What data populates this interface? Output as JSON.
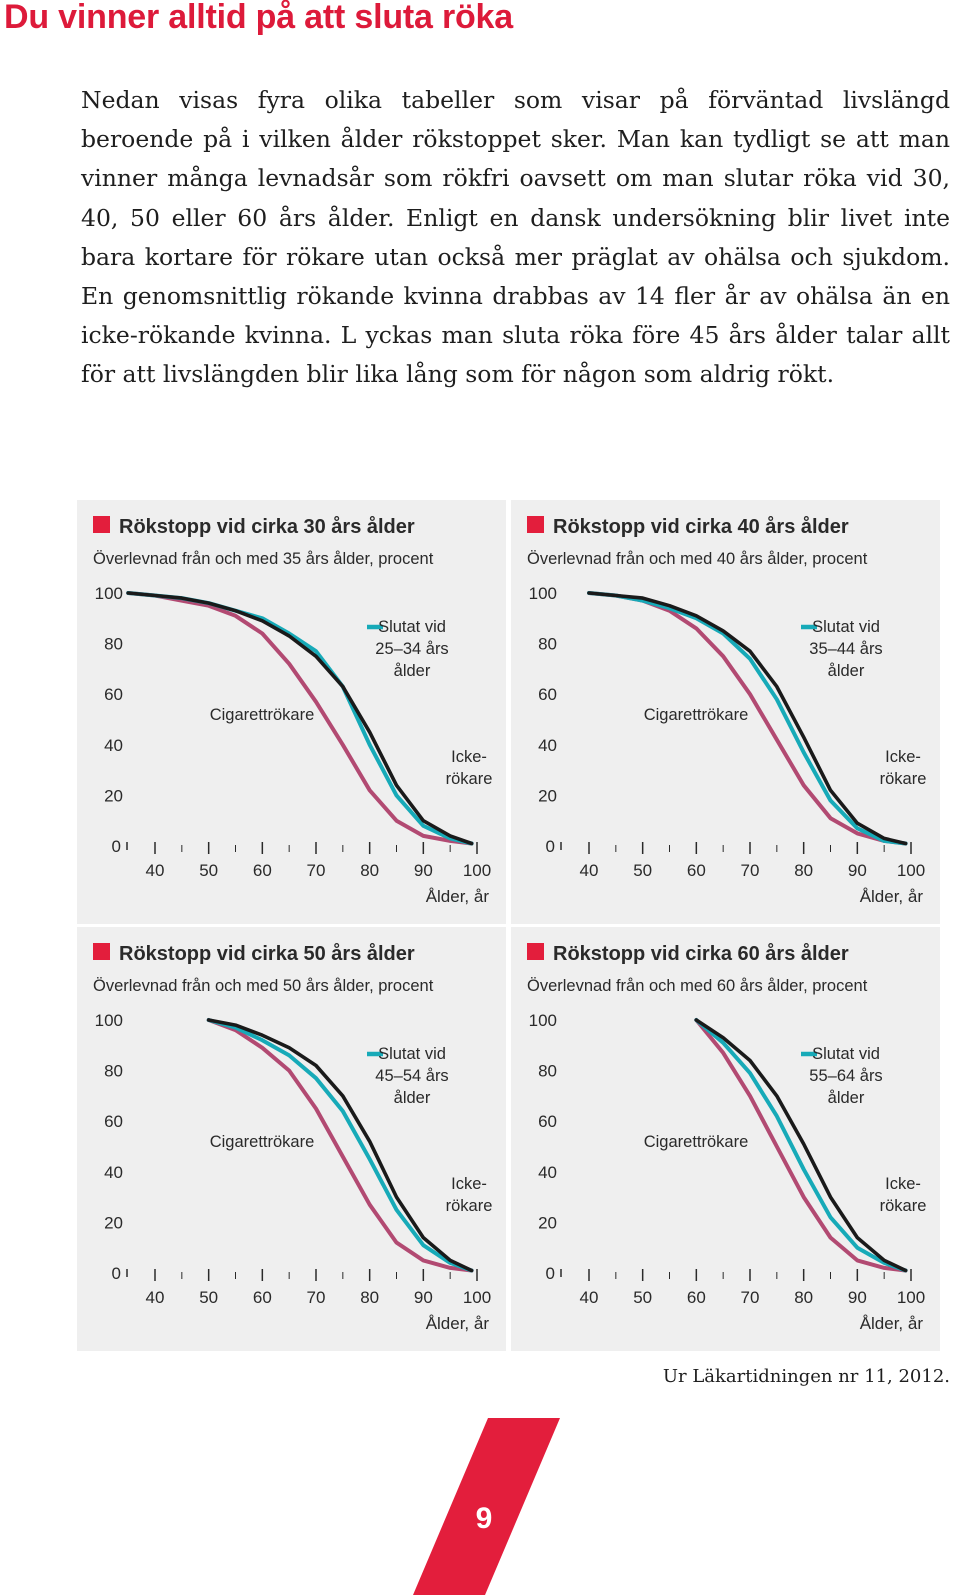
{
  "page": {
    "title": "Du vinner alltid på att sluta röka",
    "intro": "Nedan visas fyra olika tabeller som visar på förväntad livslängd beroende på i vilken ålder rökstoppet sker. Man kan tydligt se att man vinner många levnadsår som rökfri oavsett om man slutar röka vid 30, 40, 50 eller 60 års ålder. Enligt en dansk undersökning blir livet inte bara kortare för rökare utan också mer präglat av ohälsa och sjukdom. En genomsnittlig rökande kvinna drabbas av 14 fler år av ohälsa än en icke-rökande kvinna. L yckas man sluta röka före 45 års ålder talar allt för att livslängden blir lika lång som för någon som aldrig rökt.",
    "source": "Ur Läkartidningen nr 11, 2012.",
    "page_number": "9",
    "accent_color": "#e31e3c"
  },
  "chart_data": [
    {
      "type": "line",
      "title": "Rökstopp vid cirka 30 års ålder",
      "subtitle": "Överlevnad från och med 35 års ålder, procent",
      "xlabel": "Ålder, år",
      "ylabel": "",
      "xlim": [
        34,
        101
      ],
      "ylim": [
        0,
        100
      ],
      "x_ticks": [
        40,
        50,
        60,
        70,
        80,
        90,
        100
      ],
      "y_ticks": [
        0,
        20,
        40,
        60,
        80,
        100
      ],
      "labels": {
        "smoker": "Cigarettrökare",
        "nonsmoker_line1": "Icke-",
        "nonsmoker_line2": "rökare",
        "quit_line1": "Slutat vid",
        "quit_line2": "25–34 års",
        "quit_line3": "ålder"
      },
      "series": [
        {
          "key": "smoker",
          "color": "#b24a72",
          "x": [
            35,
            40,
            45,
            50,
            55,
            60,
            65,
            70,
            75,
            80,
            85,
            90,
            95,
            99
          ],
          "y": [
            100,
            99,
            97,
            95,
            91,
            84,
            72,
            57,
            40,
            22,
            10,
            4,
            2,
            1
          ]
        },
        {
          "key": "quit",
          "color": "#17aab8",
          "x": [
            35,
            40,
            45,
            50,
            55,
            60,
            65,
            70,
            75,
            80,
            85,
            90,
            95,
            99
          ],
          "y": [
            100,
            99,
            98,
            96,
            93,
            90,
            84,
            77,
            63,
            40,
            20,
            8,
            3,
            1
          ]
        },
        {
          "key": "nonsmoker",
          "color": "#1a1a1a",
          "x": [
            35,
            40,
            45,
            50,
            55,
            60,
            65,
            70,
            75,
            80,
            85,
            90,
            95,
            99
          ],
          "y": [
            100,
            99,
            98,
            96,
            93,
            89,
            83,
            75,
            63,
            45,
            24,
            10,
            4,
            1
          ]
        }
      ]
    },
    {
      "type": "line",
      "title": "Rökstopp vid cirka 40 års ålder",
      "subtitle": "Överlevnad från och med 40 års ålder, procent",
      "xlabel": "Ålder, år",
      "ylabel": "",
      "xlim": [
        34,
        101
      ],
      "ylim": [
        0,
        100
      ],
      "x_ticks": [
        40,
        50,
        60,
        70,
        80,
        90,
        100
      ],
      "y_ticks": [
        0,
        20,
        40,
        60,
        80,
        100
      ],
      "labels": {
        "smoker": "Cigarettrökare",
        "nonsmoker_line1": "Icke-",
        "nonsmoker_line2": "rökare",
        "quit_line1": "Slutat vid",
        "quit_line2": "35–44 års",
        "quit_line3": "ålder"
      },
      "series": [
        {
          "key": "smoker",
          "color": "#b24a72",
          "x": [
            40,
            45,
            50,
            55,
            60,
            65,
            70,
            75,
            80,
            85,
            90,
            95,
            99
          ],
          "y": [
            100,
            99,
            97,
            93,
            86,
            75,
            60,
            42,
            24,
            11,
            5,
            2,
            1
          ]
        },
        {
          "key": "quit",
          "color": "#17aab8",
          "x": [
            40,
            45,
            50,
            55,
            60,
            65,
            70,
            75,
            80,
            85,
            90,
            95,
            99
          ],
          "y": [
            100,
            99,
            97,
            94,
            90,
            84,
            74,
            58,
            37,
            18,
            7,
            2,
            1
          ]
        },
        {
          "key": "nonsmoker",
          "color": "#1a1a1a",
          "x": [
            40,
            45,
            50,
            55,
            60,
            65,
            70,
            75,
            80,
            85,
            90,
            95,
            99
          ],
          "y": [
            100,
            99,
            98,
            95,
            91,
            85,
            77,
            63,
            43,
            22,
            9,
            3,
            1
          ]
        }
      ]
    },
    {
      "type": "line",
      "title": "Rökstopp vid cirka 50 års ålder",
      "subtitle": "Överlevnad från och med 50 års ålder, procent",
      "xlabel": "Ålder, år",
      "ylabel": "",
      "xlim": [
        34,
        101
      ],
      "ylim": [
        0,
        100
      ],
      "x_ticks": [
        40,
        50,
        60,
        70,
        80,
        90,
        100
      ],
      "y_ticks": [
        0,
        20,
        40,
        60,
        80,
        100
      ],
      "labels": {
        "smoker": "Cigarettrökare",
        "nonsmoker_line1": "Icke-",
        "nonsmoker_line2": "rökare",
        "quit_line1": "Slutat vid",
        "quit_line2": "45–54 års",
        "quit_line3": "ålder"
      },
      "series": [
        {
          "key": "smoker",
          "color": "#b24a72",
          "x": [
            50,
            55,
            60,
            65,
            70,
            75,
            80,
            85,
            90,
            95,
            99
          ],
          "y": [
            100,
            96,
            89,
            80,
            65,
            46,
            27,
            12,
            5,
            2,
            1
          ]
        },
        {
          "key": "quit",
          "color": "#17aab8",
          "x": [
            50,
            55,
            60,
            65,
            70,
            75,
            80,
            85,
            90,
            95,
            99
          ],
          "y": [
            100,
            97,
            92,
            86,
            77,
            64,
            45,
            25,
            11,
            4,
            1
          ]
        },
        {
          "key": "nonsmoker",
          "color": "#1a1a1a",
          "x": [
            50,
            55,
            60,
            65,
            70,
            75,
            80,
            85,
            90,
            95,
            99
          ],
          "y": [
            100,
            98,
            94,
            89,
            82,
            70,
            52,
            30,
            14,
            5,
            1
          ]
        }
      ]
    },
    {
      "type": "line",
      "title": "Rökstopp vid cirka 60 års ålder",
      "subtitle": "Överlevnad från och med 60 års ålder, procent",
      "xlabel": "Ålder, år",
      "ylabel": "",
      "xlim": [
        34,
        101
      ],
      "ylim": [
        0,
        100
      ],
      "x_ticks": [
        40,
        50,
        60,
        70,
        80,
        90,
        100
      ],
      "y_ticks": [
        0,
        20,
        40,
        60,
        80,
        100
      ],
      "labels": {
        "smoker": "Cigarettrökare",
        "nonsmoker_line1": "Icke-",
        "nonsmoker_line2": "rökare",
        "quit_line1": "Slutat vid",
        "quit_line2": "55–64 års",
        "quit_line3": "ålder"
      },
      "series": [
        {
          "key": "smoker",
          "color": "#b24a72",
          "x": [
            60,
            65,
            70,
            75,
            80,
            85,
            90,
            95,
            99
          ],
          "y": [
            100,
            87,
            70,
            50,
            30,
            14,
            5,
            2,
            1
          ]
        },
        {
          "key": "quit",
          "color": "#17aab8",
          "x": [
            60,
            65,
            70,
            75,
            80,
            85,
            90,
            95,
            99
          ],
          "y": [
            100,
            91,
            79,
            62,
            41,
            22,
            10,
            4,
            1
          ]
        },
        {
          "key": "nonsmoker",
          "color": "#1a1a1a",
          "x": [
            60,
            65,
            70,
            75,
            80,
            85,
            90,
            95,
            99
          ],
          "y": [
            100,
            93,
            84,
            70,
            51,
            30,
            14,
            5,
            1
          ]
        }
      ]
    }
  ]
}
